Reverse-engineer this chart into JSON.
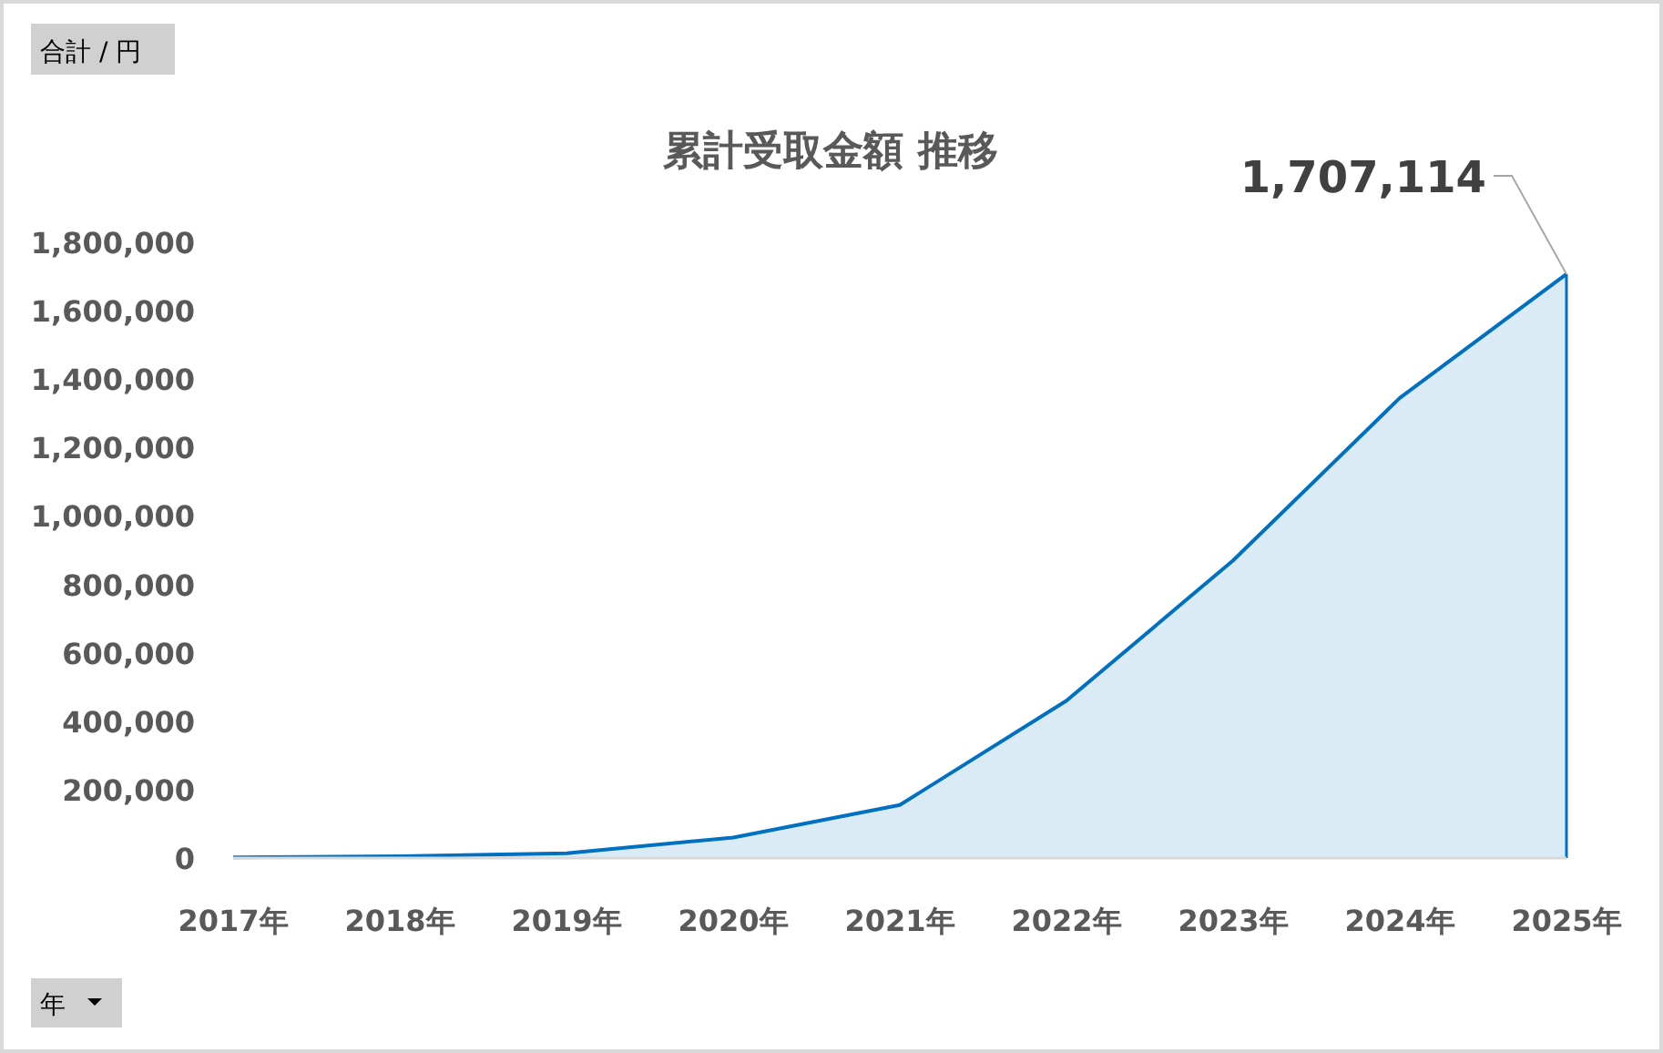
{
  "chart_data": {
    "type": "area",
    "title": "累計受取金額 推移",
    "categories": [
      "2017年",
      "2018年",
      "2019年",
      "2020年",
      "2021年",
      "2022年",
      "2023年",
      "2024年",
      "2025年"
    ],
    "series": [
      {
        "color": "#0070c0",
        "values": [
          2000,
          5000,
          14000,
          60000,
          155000,
          460000,
          870000,
          1345000,
          1707114
        ],
        "value_labels": [
          null,
          null,
          null,
          null,
          null,
          null,
          null,
          null,
          "1,707,114"
        ]
      }
    ],
    "ylim": [
      0,
      1800000
    ],
    "yticks": [
      {
        "value": 0,
        "label": "0"
      },
      {
        "value": 200000,
        "label": "200,000"
      },
      {
        "value": 400000,
        "label": "400,000"
      },
      {
        "value": 600000,
        "label": "600,000"
      },
      {
        "value": 800000,
        "label": "800,000"
      },
      {
        "value": 1000000,
        "label": "1,000,000"
      },
      {
        "value": 1200000,
        "label": "1,200,000"
      },
      {
        "value": 1400000,
        "label": "1,400,000"
      },
      {
        "value": 1600000,
        "label": "1,600,000"
      },
      {
        "value": 1800000,
        "label": "1,800,000"
      }
    ],
    "grid": false,
    "annotations": [
      "合計 / 円",
      "年"
    ]
  }
}
